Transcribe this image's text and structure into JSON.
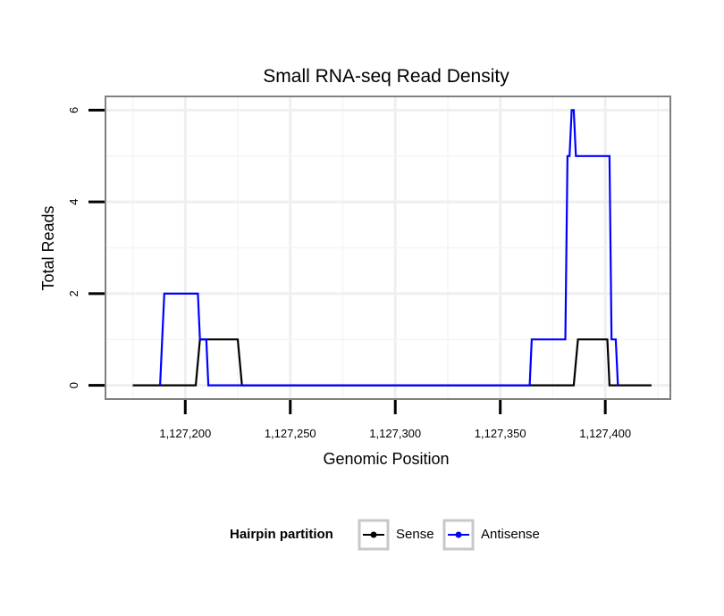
{
  "chart_data": {
    "type": "line",
    "title": "Small RNA-seq Read Density",
    "xlabel": "Genomic Position",
    "ylabel": "Total Reads",
    "xlim": [
      1127162,
      1127431
    ],
    "ylim": [
      -0.3,
      6.3
    ],
    "xticks": [
      1127200,
      1127250,
      1127300,
      1127350,
      1127400
    ],
    "xtick_labels": [
      "1,127,200",
      "1,127,250",
      "1,127,300",
      "1,127,350",
      "1,127,400"
    ],
    "yticks": [
      0,
      2,
      4,
      6
    ],
    "ytick_labels": [
      "0",
      "2",
      "4",
      "6"
    ],
    "grid": true,
    "legend": {
      "title": "Hairpin partition",
      "position": "bottom"
    },
    "series": [
      {
        "name": "Sense",
        "color": "#000000",
        "x": [
          1127175,
          1127205,
          1127207,
          1127225,
          1127227,
          1127385,
          1127387,
          1127401,
          1127402,
          1127422
        ],
        "y": [
          0,
          0,
          1,
          1,
          0,
          0,
          1,
          1,
          0,
          0
        ]
      },
      {
        "name": "Antisense",
        "color": "#0000ff",
        "x": [
          1127188,
          1127190,
          1127206,
          1127207,
          1127210,
          1127211,
          1127226,
          1127364,
          1127365,
          1127381,
          1127382,
          1127383,
          1127384,
          1127385,
          1127386,
          1127402,
          1127403,
          1127405,
          1127406
        ],
        "y": [
          0,
          2,
          2,
          1,
          1,
          0,
          0,
          0,
          1,
          1,
          5,
          5,
          6,
          6,
          5,
          5,
          1,
          1,
          0
        ]
      }
    ]
  }
}
